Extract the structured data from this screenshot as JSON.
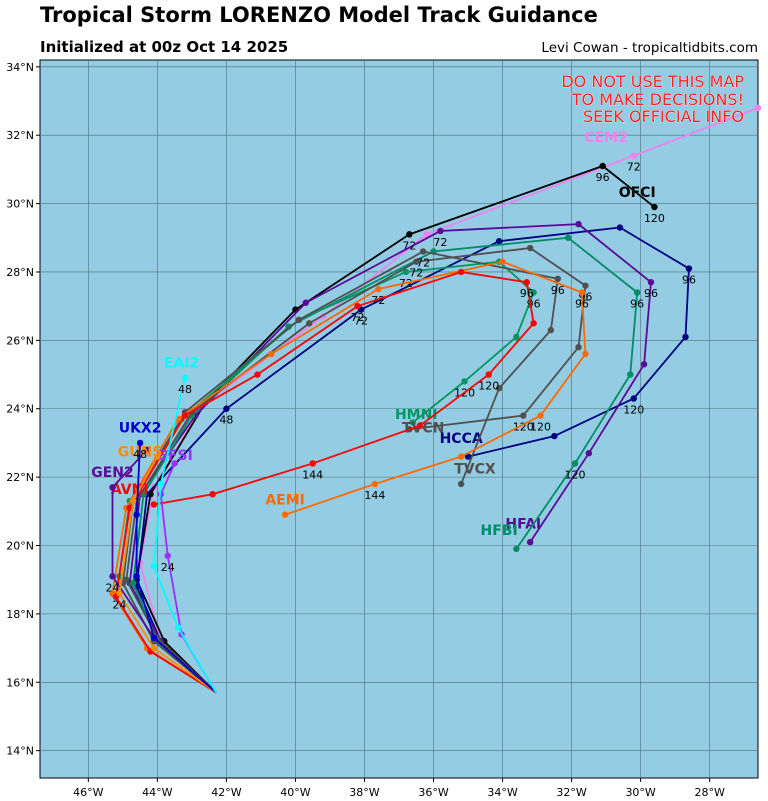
{
  "header": {
    "title": "Tropical Storm LORENZO Model Track Guidance",
    "subtitle": "Initialized at 00z Oct 14 2025",
    "credit": "Levi Cowan - tropicaltidbits.com"
  },
  "warning": [
    "DO NOT USE THIS MAP",
    "TO MAKE DECISIONS!",
    "SEEK OFFICIAL INFO"
  ],
  "colors": {
    "ocean": "#93cce3",
    "warning": "#ff2020"
  },
  "map": {
    "lon_range": [
      -47.4,
      -26.6
    ],
    "lat_range": [
      13.2,
      34.2
    ],
    "x_ticks": [
      {
        "v": -46,
        "label": "46°W"
      },
      {
        "v": -44,
        "label": "44°W"
      },
      {
        "v": -42,
        "label": "42°W"
      },
      {
        "v": -40,
        "label": "40°W"
      },
      {
        "v": -38,
        "label": "38°W"
      },
      {
        "v": -36,
        "label": "36°W"
      },
      {
        "v": -34,
        "label": "34°W"
      },
      {
        "v": -32,
        "label": "32°W"
      },
      {
        "v": -30,
        "label": "30°W"
      },
      {
        "v": -28,
        "label": "28°W"
      }
    ],
    "y_ticks": [
      {
        "v": 14,
        "label": "14°N"
      },
      {
        "v": 16,
        "label": "16°N"
      },
      {
        "v": 18,
        "label": "18°N"
      },
      {
        "v": 20,
        "label": "20°N"
      },
      {
        "v": 22,
        "label": "22°N"
      },
      {
        "v": 24,
        "label": "24°N"
      },
      {
        "v": 26,
        "label": "26°N"
      },
      {
        "v": 28,
        "label": "28°N"
      },
      {
        "v": 30,
        "label": "30°N"
      },
      {
        "v": 32,
        "label": "32°N"
      },
      {
        "v": 34,
        "label": "34°N"
      }
    ]
  },
  "chart_data": {
    "type": "map",
    "tracks": [
      {
        "name": "CEM2",
        "color": "#ee82ee",
        "points": [
          [
            -42.3,
            15.7
          ],
          [
            -43.9,
            17.2
          ],
          [
            -44.5,
            19.5
          ],
          [
            -44.1,
            21.7
          ],
          [
            -42.7,
            24.1
          ],
          [
            -39.2,
            26.7
          ],
          [
            -36.2,
            29.1
          ],
          [
            -30.2,
            31.4
          ],
          [
            -26.6,
            32.8
          ]
        ],
        "labels": [
          {
            "i": 7,
            "t": "72"
          }
        ],
        "name_pos": [
          -31.0,
          31.8
        ]
      },
      {
        "name": "OFCI",
        "color": "#000000",
        "points": [
          [
            -42.3,
            15.7
          ],
          [
            -43.8,
            17.2
          ],
          [
            -44.6,
            19.0
          ],
          [
            -44.2,
            21.5
          ],
          [
            -42.6,
            24.2
          ],
          [
            -40.0,
            26.9
          ],
          [
            -36.7,
            29.1
          ],
          [
            -31.1,
            31.1
          ],
          [
            -29.6,
            29.9
          ]
        ],
        "labels": [
          {
            "i": 6,
            "t": "72"
          },
          {
            "i": 7,
            "t": "96"
          },
          {
            "i": 8,
            "t": "120"
          }
        ],
        "name_pos": [
          -30.1,
          30.2
        ]
      },
      {
        "name": "HCCA",
        "color": "#000080",
        "points": [
          [
            -42.3,
            15.7
          ],
          [
            -43.9,
            17.2
          ],
          [
            -44.6,
            18.8
          ],
          [
            -44.3,
            21.5
          ],
          [
            -42.0,
            24.0
          ],
          [
            -38.1,
            26.9
          ],
          [
            -34.1,
            28.9
          ],
          [
            -30.6,
            29.3
          ],
          [
            -28.6,
            28.1
          ],
          [
            -28.7,
            26.1
          ],
          [
            -30.2,
            24.3
          ],
          [
            -32.5,
            23.2
          ],
          [
            -35.0,
            22.6
          ]
        ],
        "labels": [
          {
            "i": 4,
            "t": "48"
          },
          {
            "i": 5,
            "t": "72"
          },
          {
            "i": 8,
            "t": "96"
          },
          {
            "i": 10,
            "t": "120"
          }
        ],
        "name_pos": [
          -35.2,
          23.0
        ]
      },
      {
        "name": "HFAI",
        "color": "#5a0a96",
        "points": [
          [
            -42.3,
            15.7
          ],
          [
            -43.9,
            17.2
          ],
          [
            -44.8,
            18.9
          ],
          [
            -44.5,
            21.5
          ],
          [
            -42.9,
            23.8
          ],
          [
            -39.7,
            27.1
          ],
          [
            -35.8,
            29.2
          ],
          [
            -31.8,
            29.4
          ],
          [
            -29.7,
            27.7
          ],
          [
            -29.9,
            25.3
          ],
          [
            -31.5,
            22.7
          ],
          [
            -33.2,
            20.1
          ]
        ],
        "labels": [
          {
            "i": 6,
            "t": "72"
          },
          {
            "i": 8,
            "t": "96"
          }
        ],
        "name_pos": [
          -33.4,
          20.5
        ]
      },
      {
        "name": "HFBI",
        "color": "#008c64",
        "points": [
          [
            -42.3,
            15.7
          ],
          [
            -44.0,
            17.2
          ],
          [
            -44.7,
            18.9
          ],
          [
            -44.4,
            21.5
          ],
          [
            -43.0,
            23.8
          ],
          [
            -40.2,
            26.4
          ],
          [
            -36.0,
            28.6
          ],
          [
            -32.1,
            29.0
          ],
          [
            -30.1,
            27.4
          ],
          [
            -30.3,
            25.0
          ],
          [
            -31.9,
            22.4
          ],
          [
            -33.6,
            19.9
          ]
        ],
        "labels": [
          {
            "i": 8,
            "t": "96"
          },
          {
            "i": 10,
            "t": "120"
          }
        ],
        "name_pos": [
          -34.1,
          20.3
        ]
      },
      {
        "name": "HMNI",
        "color": "#009664",
        "points": [
          [
            -42.3,
            15.7
          ],
          [
            -44.1,
            17.2
          ],
          [
            -45.1,
            19.1
          ],
          [
            -44.8,
            21.3
          ],
          [
            -43.3,
            23.7
          ],
          [
            -39.9,
            26.6
          ],
          [
            -36.8,
            28.0
          ],
          [
            -34.1,
            28.3
          ],
          [
            -33.1,
            27.4
          ],
          [
            -33.6,
            26.1
          ],
          [
            -35.1,
            24.8
          ],
          [
            -36.6,
            23.6
          ]
        ],
        "labels": [
          {
            "i": 6,
            "t": "72"
          },
          {
            "i": 8,
            "t": "96"
          },
          {
            "i": 10,
            "t": "120"
          }
        ],
        "name_pos": [
          -36.5,
          23.7
        ]
      },
      {
        "name": "TVCN",
        "color": "#505050",
        "points": [
          [
            -42.3,
            15.7
          ],
          [
            -44.0,
            17.3
          ],
          [
            -44.9,
            19.0
          ],
          [
            -44.6,
            21.3
          ],
          [
            -43.0,
            23.9
          ],
          [
            -39.6,
            26.5
          ],
          [
            -36.5,
            28.3
          ],
          [
            -33.2,
            28.7
          ],
          [
            -31.6,
            27.6
          ],
          [
            -31.8,
            25.8
          ],
          [
            -33.4,
            23.8
          ],
          [
            -36.7,
            23.4
          ]
        ],
        "labels": [
          {
            "i": 6,
            "t": "72"
          },
          {
            "i": 8,
            "t": "96"
          },
          {
            "i": 10,
            "t": "120"
          }
        ],
        "name_pos": [
          -36.3,
          23.3
        ]
      },
      {
        "name": "TVCX",
        "color": "#505050",
        "points": [
          [
            -42.3,
            15.7
          ],
          [
            -44.1,
            17.2
          ],
          [
            -45.0,
            18.9
          ],
          [
            -44.7,
            21.3
          ],
          [
            -43.2,
            23.9
          ],
          [
            -39.9,
            26.6
          ],
          [
            -36.3,
            28.6
          ],
          [
            -32.4,
            27.8
          ],
          [
            -32.6,
            26.3
          ],
          [
            -34.1,
            24.6
          ],
          [
            -35.2,
            21.8
          ]
        ],
        "labels": [
          {
            "i": 6,
            "t": "72"
          },
          {
            "i": 7,
            "t": "96"
          }
        ],
        "name_pos": [
          -34.8,
          22.1
        ]
      },
      {
        "name": "AEMI",
        "color": "#ff6a00",
        "points": [
          [
            -42.3,
            15.7
          ],
          [
            -44.3,
            17.0
          ],
          [
            -45.3,
            18.6
          ],
          [
            -44.9,
            21.1
          ],
          [
            -43.4,
            23.7
          ],
          [
            -40.7,
            25.6
          ],
          [
            -37.6,
            27.5
          ],
          [
            -34.0,
            28.3
          ],
          [
            -31.7,
            27.4
          ],
          [
            -31.6,
            25.6
          ],
          [
            -32.9,
            23.8
          ],
          [
            -35.2,
            22.6
          ],
          [
            -37.7,
            21.8
          ],
          [
            -40.3,
            20.9
          ]
        ],
        "labels": [
          {
            "i": 6,
            "t": "72"
          },
          {
            "i": 8,
            "t": "96"
          },
          {
            "i": 10,
            "t": "120"
          },
          {
            "i": 12,
            "t": "144"
          }
        ],
        "name_pos": [
          -40.3,
          21.2
        ]
      },
      {
        "name": "AVNI",
        "color": "#ff0000",
        "points": [
          [
            -42.3,
            15.7
          ],
          [
            -44.2,
            16.9
          ],
          [
            -45.2,
            18.5
          ],
          [
            -44.8,
            21.1
          ],
          [
            -43.2,
            23.8
          ],
          [
            -41.1,
            25.0
          ],
          [
            -38.2,
            27.0
          ],
          [
            -35.2,
            28.0
          ],
          [
            -33.3,
            27.7
          ],
          [
            -33.1,
            26.5
          ],
          [
            -34.4,
            25.0
          ],
          [
            -36.4,
            23.5
          ],
          [
            -39.5,
            22.4
          ],
          [
            -42.4,
            21.5
          ],
          [
            -44.1,
            21.2
          ]
        ],
        "labels": [
          {
            "i": 6,
            "t": "72"
          },
          {
            "i": 8,
            "t": "96"
          },
          {
            "i": 10,
            "t": "120"
          },
          {
            "i": 12,
            "t": "144"
          }
        ],
        "name_pos": [
          -44.8,
          21.5
        ]
      },
      {
        "name": "GFSI",
        "color": "#9b30ff",
        "points": [
          [
            -42.3,
            15.7
          ],
          [
            -43.3,
            17.4
          ],
          [
            -43.7,
            19.7
          ],
          [
            -43.9,
            21.5
          ],
          [
            -43.5,
            22.4
          ]
        ],
        "labels": [
          {
            "i": 2,
            "t": "24"
          }
        ],
        "name_pos": [
          -43.5,
          22.5
        ]
      },
      {
        "name": "GEN2",
        "color": "#5a0a96",
        "points": [
          [
            -42.3,
            15.7
          ],
          [
            -44.1,
            17.3
          ],
          [
            -45.3,
            19.1
          ],
          [
            -45.3,
            21.7
          ],
          [
            -44.3,
            22.8
          ]
        ],
        "labels": [
          {
            "i": 2,
            "t": "24"
          }
        ],
        "name_pos": [
          -45.3,
          22.0
        ]
      },
      {
        "name": "GUNS",
        "color": "#ff8c00",
        "points": [
          [
            -42.3,
            15.7
          ],
          [
            -44.1,
            17.0
          ],
          [
            -45.1,
            18.6
          ],
          [
            -44.7,
            21.3
          ],
          [
            -44.0,
            22.6
          ]
        ],
        "labels": [
          {
            "i": 2,
            "t": "24"
          }
        ],
        "name_pos": [
          -44.5,
          22.6
        ]
      },
      {
        "name": "UKX2",
        "color": "#0000cd",
        "points": [
          [
            -42.3,
            15.7
          ],
          [
            -44.1,
            17.3
          ],
          [
            -44.6,
            19.1
          ],
          [
            -44.6,
            20.9
          ],
          [
            -44.5,
            23.0
          ]
        ],
        "labels": [
          {
            "i": 4,
            "t": "48"
          }
        ],
        "name_pos": [
          -44.5,
          23.3
        ]
      },
      {
        "name": "EAI2",
        "color": "#00ffff",
        "points": [
          [
            -42.3,
            15.7
          ],
          [
            -43.4,
            17.6
          ],
          [
            -44.1,
            19.4
          ],
          [
            -43.9,
            21.8
          ],
          [
            -43.2,
            24.9
          ]
        ],
        "labels": [
          {
            "i": 4,
            "t": "48"
          }
        ],
        "name_pos": [
          -43.3,
          25.2
        ]
      }
    ]
  }
}
